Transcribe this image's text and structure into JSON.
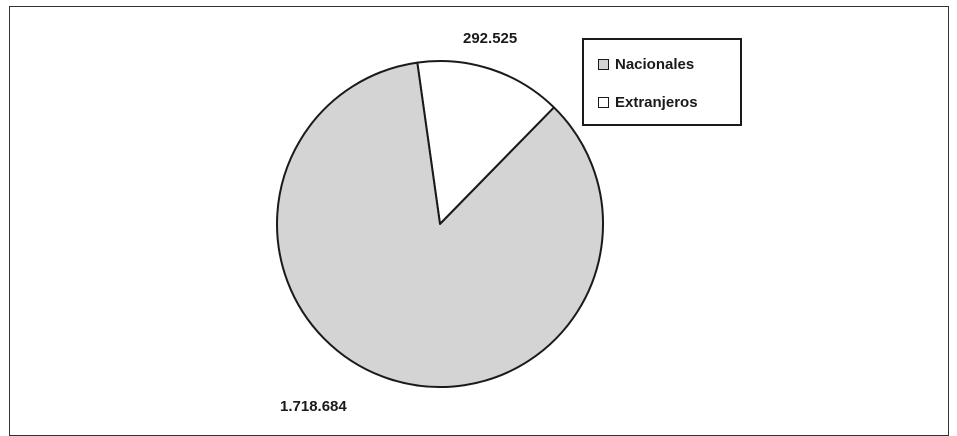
{
  "chart_data": {
    "type": "pie",
    "title": "",
    "slices": [
      {
        "name": "Nacionales",
        "value": 1718684,
        "label": "1.718.684",
        "color": "#d4d4d4"
      },
      {
        "name": "Extranjeros",
        "value": 292525,
        "label": "292.525",
        "color": "#ffffff"
      }
    ],
    "legend_position": "top-right",
    "legend": [
      "Nacionales",
      "Extranjeros"
    ]
  }
}
